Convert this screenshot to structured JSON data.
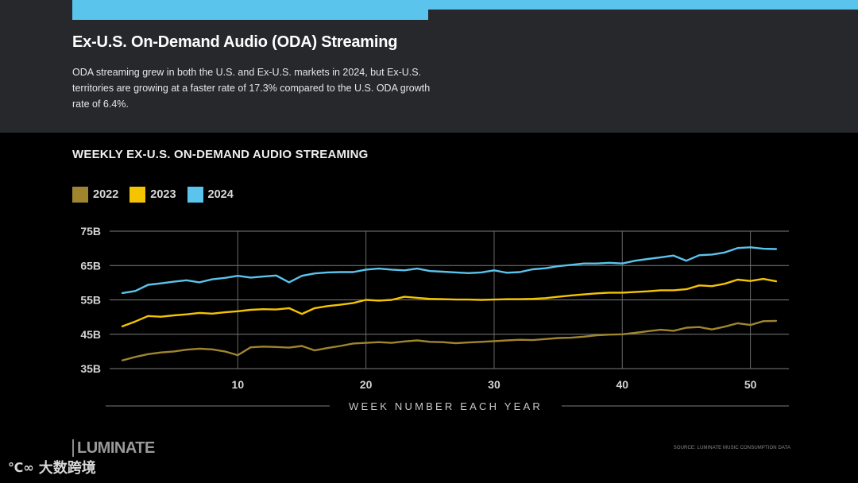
{
  "header": {
    "title": "Ex-U.S. On-Demand Audio (ODA) Streaming",
    "description": "ODA streaming grew in both the U.S. and Ex-U.S. markets in 2024, but Ex-U.S. territories are growing at a faster rate of 17.3% compared to the U.S. ODA growth rate of 6.4%.",
    "accent_color": "#5bc4ec"
  },
  "chart_data": {
    "type": "line",
    "title": "WEEKLY EX-U.S. ON-DEMAND AUDIO STREAMING",
    "xlabel": "WEEK NUMBER EACH YEAR",
    "ylabel": "",
    "xlim": [
      0,
      53
    ],
    "ylim": [
      35,
      75
    ],
    "xticks": [
      10,
      20,
      30,
      40,
      50
    ],
    "yticks": [
      35,
      45,
      55,
      65,
      75
    ],
    "ytick_labels": [
      "35B",
      "45B",
      "55B",
      "65B",
      "75B"
    ],
    "grid": true,
    "legend_position": "top-left",
    "series": [
      {
        "name": "2022",
        "color": "#a0852f",
        "values": [
          37.4,
          38.4,
          39.2,
          39.7,
          40.0,
          40.5,
          40.8,
          40.6,
          40.0,
          38.9,
          41.2,
          41.4,
          41.3,
          41.1,
          41.6,
          40.3,
          41.0,
          41.6,
          42.3,
          42.5,
          42.7,
          42.5,
          42.9,
          43.2,
          42.8,
          42.7,
          42.4,
          42.6,
          42.8,
          43.0,
          43.2,
          43.4,
          43.3,
          43.6,
          43.9,
          44.0,
          44.3,
          44.7,
          44.9,
          45.0,
          45.4,
          45.9,
          46.3,
          46.0,
          46.9,
          47.1,
          46.4,
          47.2,
          48.2,
          47.7,
          48.8,
          48.9
        ]
      },
      {
        "name": "2023",
        "color": "#f5c400",
        "values": [
          47.3,
          48.7,
          50.3,
          50.1,
          50.5,
          50.8,
          51.2,
          51.0,
          51.4,
          51.7,
          52.1,
          52.3,
          52.2,
          52.6,
          50.9,
          52.6,
          53.2,
          53.6,
          54.1,
          55.0,
          54.8,
          55.0,
          55.9,
          55.6,
          55.3,
          55.2,
          55.1,
          55.1,
          55.0,
          55.1,
          55.2,
          55.2,
          55.3,
          55.5,
          55.9,
          56.3,
          56.6,
          56.9,
          57.1,
          57.1,
          57.3,
          57.5,
          57.8,
          57.8,
          58.1,
          59.2,
          59.0,
          59.7,
          60.9,
          60.5,
          61.1,
          60.4
        ]
      },
      {
        "name": "2024",
        "color": "#5bc4ec",
        "values": [
          57.0,
          57.6,
          59.4,
          59.8,
          60.3,
          60.7,
          60.1,
          61.0,
          61.4,
          62.0,
          61.5,
          61.8,
          62.1,
          60.1,
          62.0,
          62.7,
          63.0,
          63.1,
          63.1,
          63.8,
          64.1,
          63.8,
          63.6,
          64.1,
          63.4,
          63.2,
          63.0,
          62.8,
          63.0,
          63.6,
          62.9,
          63.1,
          63.9,
          64.2,
          64.8,
          65.2,
          65.6,
          65.6,
          65.8,
          65.6,
          66.4,
          66.9,
          67.4,
          67.9,
          66.4,
          68.0,
          68.2,
          68.8,
          70.1,
          70.3,
          69.9,
          69.8
        ]
      }
    ]
  },
  "footer": {
    "logo_text": "LUMINATE",
    "source": "SOURCE: LUMINATE MUSIC CONSUMPTION DATA",
    "watermark_mark": "℃∞",
    "watermark_text": "大数跨境"
  }
}
